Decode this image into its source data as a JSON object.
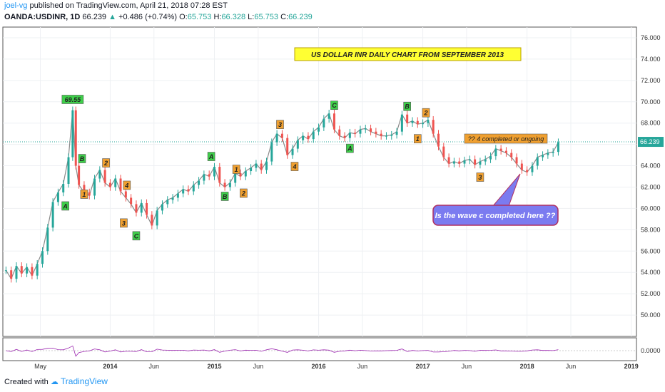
{
  "header": {
    "author": "joel-vg",
    "published": "published on TradingView.com, April 21, 2018 07:28 EST",
    "symbol": "OANDA:USDINR, 1D",
    "last": "66.239",
    "change": "+0.486 (+0.74%)",
    "open_label": "O:",
    "open": "65.753",
    "high_label": "H:",
    "high": "66.328",
    "low_label": "L:",
    "low": "65.753",
    "close_label": "C:",
    "close": "66.239"
  },
  "footer": {
    "created_with": "Created with",
    "brand": "TradingView"
  },
  "colors": {
    "up": "#26a69a",
    "down": "#ef5350",
    "green_label": "#3ecf4a",
    "orange_label": "#f0a030",
    "callout": "#7b7bf0"
  },
  "chart_data": {
    "type": "line",
    "title": "US DOLLAR INR DAILY CHART FROM SEPTEMBER 2013",
    "ylim": [
      48,
      77
    ],
    "yticks": [
      "76.000",
      "74.000",
      "72.000",
      "70.000",
      "68.000",
      "66.000",
      "64.000",
      "62.000",
      "60.000",
      "58.000",
      "56.000",
      "54.000",
      "52.000",
      "50.000"
    ],
    "ytick_values": [
      76,
      74,
      72,
      70,
      68,
      66,
      64,
      62,
      60,
      58,
      56,
      54,
      52,
      50
    ],
    "xticks": [
      "May",
      "2014",
      "Jun",
      "2015",
      "Jun",
      "2016",
      "Jun",
      "2017",
      "Jun",
      "2018",
      "Jun",
      "2019"
    ],
    "xtick_values": [
      2013.33,
      2014.0,
      2014.42,
      2015.0,
      2015.42,
      2016.0,
      2016.42,
      2017.0,
      2017.42,
      2018.0,
      2018.42,
      2019.0
    ],
    "xlim": [
      2012.97,
      2019.05
    ],
    "current_price_label": "66.239",
    "current_price": 66.239,
    "oscillator_tick": "0.0000",
    "series": [
      {
        "x": [
          2013.0,
          2013.05,
          2013.1,
          2013.15,
          2013.2,
          2013.25,
          2013.3,
          2013.35,
          2013.4,
          2013.45,
          2013.5,
          2013.55,
          2013.6,
          2013.64,
          2013.67,
          2013.7,
          2013.75,
          2013.8,
          2013.85,
          2013.9,
          2013.95,
          2014.0,
          2014.05,
          2014.1,
          2014.15,
          2014.2,
          2014.25,
          2014.3,
          2014.35,
          2014.4,
          2014.45,
          2014.5,
          2014.55,
          2014.6,
          2014.65,
          2014.7,
          2014.75,
          2014.8,
          2014.85,
          2014.9,
          2014.95,
          2015.0,
          2015.05,
          2015.1,
          2015.15,
          2015.2,
          2015.25,
          2015.3,
          2015.35,
          2015.4,
          2015.45,
          2015.5,
          2015.55,
          2015.6,
          2015.65,
          2015.7,
          2015.75,
          2015.8,
          2015.85,
          2015.9,
          2015.95,
          2016.0,
          2016.05,
          2016.1,
          2016.15,
          2016.2,
          2016.25,
          2016.3,
          2016.35,
          2016.4,
          2016.45,
          2016.5,
          2016.55,
          2016.6,
          2016.65,
          2016.7,
          2016.75,
          2016.8,
          2016.85,
          2016.9,
          2016.95,
          2017.0,
          2017.05,
          2017.1,
          2017.15,
          2017.2,
          2017.25,
          2017.3,
          2017.35,
          2017.4,
          2017.45,
          2017.5,
          2017.55,
          2017.6,
          2017.65,
          2017.7,
          2017.75,
          2017.8,
          2017.85,
          2017.9,
          2017.95,
          2018.0,
          2018.05,
          2018.1,
          2018.15,
          2018.2,
          2018.25,
          2018.3
        ],
        "values": [
          54.2,
          53.4,
          54.6,
          53.9,
          54.5,
          53.7,
          54.8,
          56.0,
          58.2,
          60.6,
          61.5,
          62.3,
          64.8,
          69.2,
          64.0,
          62.2,
          61.5,
          61.2,
          62.8,
          63.6,
          62.4,
          62.0,
          62.8,
          61.6,
          61.0,
          60.4,
          59.6,
          60.5,
          59.4,
          58.4,
          59.8,
          60.4,
          60.8,
          61.0,
          61.4,
          61.8,
          61.6,
          62.2,
          62.6,
          63.2,
          63.0,
          63.9,
          62.4,
          62.0,
          62.4,
          63.3,
          63.0,
          63.5,
          63.8,
          64.2,
          63.6,
          64.4,
          66.2,
          67.0,
          66.6,
          65.0,
          65.6,
          66.4,
          66.8,
          66.5,
          67.2,
          67.6,
          68.4,
          68.9,
          67.4,
          66.8,
          66.6,
          67.1,
          67.0,
          67.4,
          67.5,
          67.2,
          67.0,
          66.8,
          66.8,
          66.9,
          67.2,
          68.8,
          68.0,
          68.2,
          67.9,
          68.0,
          68.3,
          67.0,
          65.8,
          64.8,
          64.2,
          64.4,
          64.2,
          64.5,
          64.6,
          64.1,
          64.4,
          64.6,
          64.9,
          65.6,
          65.4,
          65.2,
          64.8,
          64.2,
          63.6,
          63.4,
          64.0,
          64.8,
          65.0,
          65.2,
          65.3,
          66.2
        ]
      }
    ],
    "wave_labels": [
      {
        "text": "69.55",
        "x": 2013.64,
        "y": 69.55,
        "color": "green",
        "pos": "above"
      },
      {
        "text": "A",
        "x": 2013.57,
        "y": 60.9,
        "color": "green",
        "pos": "below"
      },
      {
        "text": "B",
        "x": 2013.73,
        "y": 64.0,
        "color": "green",
        "pos": "above"
      },
      {
        "text": "1",
        "x": 2013.75,
        "y": 62.0,
        "color": "orange",
        "pos": "below"
      },
      {
        "text": "2",
        "x": 2013.96,
        "y": 63.6,
        "color": "orange",
        "pos": "above"
      },
      {
        "text": "4",
        "x": 2014.16,
        "y": 61.5,
        "color": "orange",
        "pos": "above"
      },
      {
        "text": "3",
        "x": 2014.13,
        "y": 59.3,
        "color": "orange",
        "pos": "below"
      },
      {
        "text": "C",
        "x": 2014.25,
        "y": 58.1,
        "color": "green",
        "pos": "below"
      },
      {
        "text": "A",
        "x": 2014.97,
        "y": 64.2,
        "color": "green",
        "pos": "above"
      },
      {
        "text": "B",
        "x": 2015.1,
        "y": 61.8,
        "color": "green",
        "pos": "below"
      },
      {
        "text": "1",
        "x": 2015.21,
        "y": 63.0,
        "color": "orange",
        "pos": "above"
      },
      {
        "text": "2",
        "x": 2015.28,
        "y": 62.1,
        "color": "orange",
        "pos": "below"
      },
      {
        "text": "3",
        "x": 2015.63,
        "y": 67.2,
        "color": "orange",
        "pos": "above"
      },
      {
        "text": "4",
        "x": 2015.77,
        "y": 64.6,
        "color": "orange",
        "pos": "below"
      },
      {
        "text": "C",
        "x": 2016.15,
        "y": 69.0,
        "color": "green",
        "pos": "above"
      },
      {
        "text": "A",
        "x": 2016.3,
        "y": 66.3,
        "color": "green",
        "pos": "below"
      },
      {
        "text": "B",
        "x": 2016.85,
        "y": 68.9,
        "color": "green",
        "pos": "above"
      },
      {
        "text": "1",
        "x": 2016.95,
        "y": 67.2,
        "color": "orange",
        "pos": "below"
      },
      {
        "text": "2",
        "x": 2017.03,
        "y": 68.3,
        "color": "orange",
        "pos": "above"
      },
      {
        "text": "3",
        "x": 2017.55,
        "y": 63.6,
        "color": "orange",
        "pos": "below"
      }
    ],
    "annotations": {
      "wave4_note": "?? 4 completed or ongoing",
      "callout": "Is the wave c completed here ??"
    }
  }
}
